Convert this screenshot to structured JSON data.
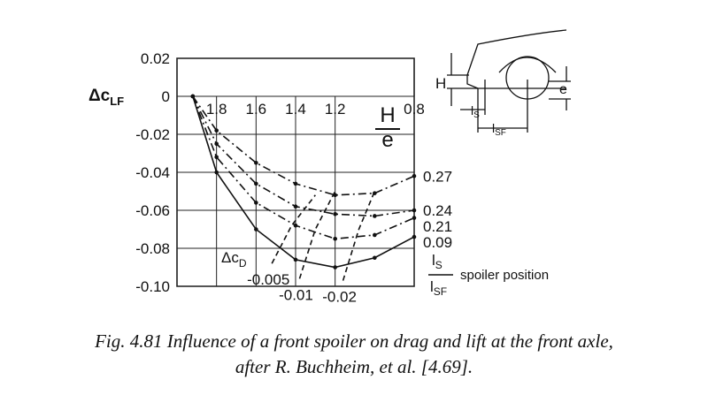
{
  "chart_data": {
    "type": "line",
    "y_label": "Δc",
    "y_label_sub": "LF",
    "x_label_numerator": "H",
    "x_label_denominator": "e",
    "xlim": [
      2.0,
      0.8
    ],
    "xticks": [
      1.8,
      1.6,
      1.4,
      1.2,
      0.8
    ],
    "ylim": [
      0.02,
      -0.1
    ],
    "yticks": [
      0.02,
      0,
      -0.02,
      -0.04,
      -0.06,
      -0.08,
      {
        "value": -0.1,
        "label": "-0.10"
      }
    ],
    "grid": true,
    "series": [
      {
        "name": "0.27",
        "color": "#111111",
        "style": "dashdot",
        "x": [
          1.92,
          1.8,
          1.6,
          1.4,
          1.2,
          1.0,
          0.8
        ],
        "values": [
          0,
          -0.018,
          -0.035,
          -0.046,
          -0.052,
          -0.051,
          -0.042
        ]
      },
      {
        "name": "0.24",
        "color": "#111111",
        "style": "dashdot",
        "x": [
          1.92,
          1.8,
          1.6,
          1.4,
          1.2,
          1.0,
          0.8
        ],
        "values": [
          0,
          -0.025,
          -0.046,
          -0.058,
          -0.062,
          -0.063,
          -0.06
        ]
      },
      {
        "name": "0.21",
        "color": "#111111",
        "style": "dashdot",
        "x": [
          1.92,
          1.8,
          1.6,
          1.4,
          1.2,
          1.0,
          0.8
        ],
        "values": [
          0,
          -0.032,
          -0.056,
          -0.068,
          -0.075,
          -0.073,
          -0.064
        ]
      },
      {
        "name": "0.09",
        "color": "#111111",
        "style": "solid",
        "x": [
          1.92,
          1.8,
          1.6,
          1.4,
          1.2,
          1.0,
          0.8
        ],
        "values": [
          0,
          -0.04,
          -0.07,
          -0.086,
          -0.09,
          -0.085,
          -0.074
        ]
      }
    ],
    "drag_lines_label": "Δc",
    "drag_lines_label_sub": "D",
    "drag_lines": [
      {
        "name": "-0.005",
        "color": "#111111",
        "style": "dashed",
        "x": [
          1.52,
          1.42,
          1.3
        ],
        "values": [
          -0.088,
          -0.068,
          -0.052
        ]
      },
      {
        "name": "-0.01",
        "color": "#111111",
        "style": "dashed",
        "x": [
          1.38,
          1.3,
          1.2
        ],
        "values": [
          -0.096,
          -0.07,
          -0.05
        ]
      },
      {
        "name": "-0.02",
        "color": "#111111",
        "style": "dashed",
        "x": [
          1.16,
          1.08,
          1.0
        ],
        "values": [
          -0.097,
          -0.07,
          -0.05
        ]
      }
    ],
    "legend_numerator": "l",
    "legend_numerator_sub": "S",
    "legend_denominator": "l",
    "legend_denominator_sub": "SF",
    "legend_title": "spoiler position"
  },
  "diagram_labels": {
    "h": "H",
    "e": "e",
    "ls": "l",
    "ls_sub": "S",
    "lsf": "l",
    "lsf_sub": "SF"
  },
  "caption": {
    "line1": "Fig. 4.81  Influence of a front spoiler on drag and lift at the front axle,",
    "line2": "after R. Buchheim, et al. [4.69]."
  }
}
